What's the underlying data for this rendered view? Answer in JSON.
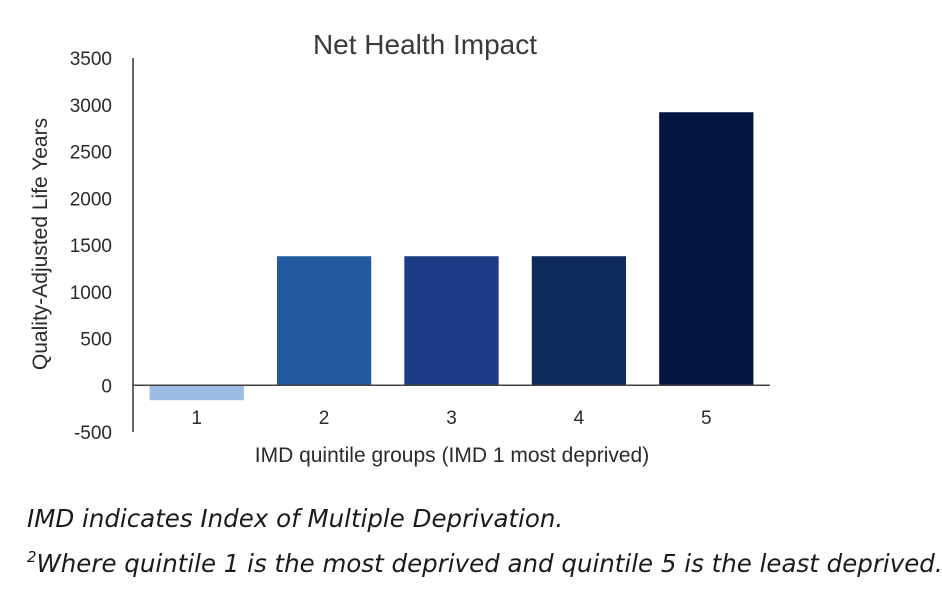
{
  "chart_data": {
    "type": "bar",
    "title": "Net Health Impact",
    "xlabel": "IMD quintile groups (IMD 1 most deprived)",
    "ylabel": "Quality-Adjusted Life Years",
    "categories": [
      "1",
      "2",
      "3",
      "4",
      "5"
    ],
    "values": [
      -160,
      1380,
      1380,
      1380,
      2920
    ],
    "ylim": [
      -500,
      3500
    ],
    "yticks": [
      3500,
      3000,
      2500,
      2000,
      1500,
      1000,
      500,
      0,
      -500
    ],
    "colors": [
      "#9dbbe3",
      "#235a9e",
      "#1d3a84",
      "#0e2b5c",
      "#04163f"
    ],
    "grid": false,
    "legend": "none"
  },
  "notes": {
    "line1": "IMD indicates Index of Multiple Deprivation.",
    "line2_sup": "2",
    "line2": "Where quintile 1 is the most deprived and quintile 5 is the least deprived."
  }
}
